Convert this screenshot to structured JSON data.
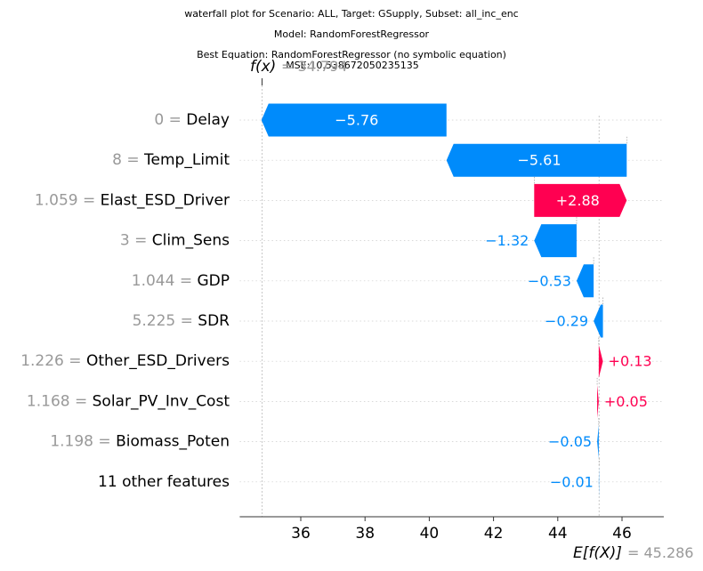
{
  "chart_data": {
    "type": "waterfall",
    "title_lines": [
      "waterfall plot for Scenario: ALL, Target: GSupply, Subset: all_inc_enc",
      "Model: RandomForestRegressor",
      "Best Equation: RandomForestRegressor (no symbolic equation)",
      "MSE:10.538672050235135"
    ],
    "fx_label": "f(x)",
    "fx_value_text": "= 34.794",
    "fx_value": 34.794,
    "base_label": "E[f(X)]",
    "base_value_text": "= 45.286",
    "base_value": 45.286,
    "xlim": [
      34.1,
      47.3
    ],
    "xticks": [
      "36",
      "38",
      "40",
      "42",
      "44",
      "46"
    ],
    "xtick_values": [
      36,
      38,
      40,
      42,
      44,
      46
    ],
    "colors": {
      "negative": "#008bfb",
      "positive": "#ff0051",
      "feature_value": "#999999",
      "grid": "#cccccc"
    },
    "features": [
      {
        "value": "0",
        "name": "Delay",
        "contribution": -5.76,
        "label": "−5.76"
      },
      {
        "value": "8",
        "name": "Temp_Limit",
        "contribution": -5.61,
        "label": "−5.61"
      },
      {
        "value": "1.059",
        "name": "Elast_ESD_Driver",
        "contribution": 2.88,
        "label": "+2.88"
      },
      {
        "value": "3",
        "name": "Clim_Sens",
        "contribution": -1.32,
        "label": "−1.32"
      },
      {
        "value": "1.044",
        "name": "GDP",
        "contribution": -0.53,
        "label": "−0.53"
      },
      {
        "value": "5.225",
        "name": "SDR",
        "contribution": -0.29,
        "label": "−0.29"
      },
      {
        "value": "1.226",
        "name": "Other_ESD_Drivers",
        "contribution": 0.13,
        "label": "+0.13"
      },
      {
        "value": "1.168",
        "name": "Solar_PV_Inv_Cost",
        "contribution": 0.05,
        "label": "+0.05"
      },
      {
        "value": "1.198",
        "name": "Biomass_Poten",
        "contribution": -0.05,
        "label": "−0.05"
      },
      {
        "value": "",
        "name": "11 other features",
        "contribution": -0.01,
        "label": "−0.01"
      }
    ]
  }
}
